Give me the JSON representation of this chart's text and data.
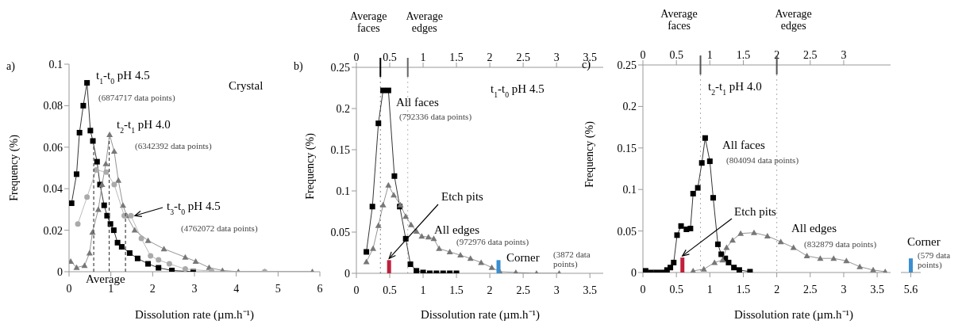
{
  "chart_data": [
    {
      "type": "line",
      "xlabel": "Dissolution rate (µm.h⁻¹)",
      "ylabel": "Frequency (%)",
      "xlim": [
        0,
        6
      ],
      "xticks": [
        0,
        1,
        2,
        3,
        4,
        5,
        6
      ],
      "ylim": [
        0,
        0.1
      ],
      "yticks": [
        0,
        0.02,
        0.04,
        0.06,
        0.08,
        0.1
      ],
      "annotations": [
        "a)",
        "(6874717 data points)",
        "(6342392 data points)",
        "(4762072 data points)",
        "Crystal",
        "Average",
        {
          "text": "t$_{3}$-t$_{0}$ pH 4.5",
          "x": 1.48,
          "y": 0.027
        }
      ],
      "ref_lines": [
        {
          "axis": "x",
          "value": 0.59,
          "color": "#444444",
          "line_style": "dashed"
        },
        {
          "axis": "x",
          "value": 0.96,
          "color": "#444444",
          "line_style": "dashed"
        },
        {
          "axis": "x",
          "value": 1.35,
          "color": "#444444",
          "line_style": "dashed"
        }
      ],
      "series": [
        {
          "name": "t$_{1}$-t$_{0}$ pH 4.5",
          "marker": "square",
          "color": "#000000",
          "x": [
            0.06,
            0.18,
            0.25,
            0.34,
            0.43,
            0.51,
            0.57,
            0.67,
            0.74,
            0.84,
            0.91,
            0.99,
            1.07,
            1.16,
            1.26,
            1.45,
            1.64,
            1.89,
            2.14,
            2.46,
            2.97
          ],
          "values": [
            0.033,
            0.047,
            0.067,
            0.08,
            0.091,
            0.068,
            0.063,
            0.053,
            0.042,
            0.032,
            0.027,
            0.023,
            0.02,
            0.014,
            0.012,
            0.009,
            0.0064,
            0.0038,
            0.0019,
            0.0006,
            0
          ]
        },
        {
          "name": "t$_{2}$-t$_{1}$ pH 4.0",
          "marker": "triangle",
          "color": "#777777",
          "x": [
            0.04,
            0.18,
            0.37,
            0.49,
            0.56,
            0.7,
            0.79,
            0.88,
            0.97,
            1.08,
            1.18,
            1.29,
            1.38,
            1.57,
            1.89,
            2.27,
            2.78,
            3.03,
            3.35,
            3.67,
            4.05,
            4.68,
            5.82
          ],
          "values": [
            0.005,
            0.002,
            0.003,
            0.009,
            0.019,
            0.03,
            0.042,
            0.052,
            0.066,
            0.058,
            0.044,
            0.032,
            0.027,
            0.02,
            0.015,
            0.011,
            0.007,
            0.005,
            0.002,
            0.0006,
            0,
            0,
            0
          ]
        },
        {
          "marker": "circle",
          "color": "#aaaaaa",
          "x": [
            0.21,
            0.43,
            0.65,
            0.89,
            1.08,
            1.32,
            1.48,
            1.73,
            1.95,
            2.14,
            2.4,
            2.78,
            3.41,
            4.68
          ],
          "values": [
            0.023,
            0.036,
            0.049,
            0.048,
            0.042,
            0.027,
            0.027,
            0.016,
            0.0076,
            0.0057,
            0.0038,
            0.0013,
            0.0003,
            0
          ]
        }
      ]
    },
    {
      "type": "line",
      "xlabel": "Dissolution rate (µm.h⁻¹)",
      "ylabel": "Frequency (%)",
      "xlim": [
        0,
        3.7
      ],
      "xticks": [
        0,
        0.5,
        1,
        1.5,
        2,
        2.5,
        3,
        3.5
      ],
      "x2lim": [
        0,
        3.7
      ],
      "x2ticks": [
        0,
        0.5,
        1,
        1.5,
        2,
        2.5,
        3,
        3.5
      ],
      "ylim": [
        0,
        0.25
      ],
      "yticks": [
        0,
        0.05,
        0.1,
        0.15,
        0.2,
        0.25
      ],
      "annotations": [
        "b)",
        "t$_{1}$-t$_{0}$ pH 4.5",
        "(792336 data points)",
        "(972976 data points)",
        "(3872 data points)"
      ],
      "ref_lines": [
        {
          "axis": "x2",
          "value": 0.36,
          "label": "Average faces",
          "color": "#000000"
        },
        {
          "axis": "x2",
          "value": 0.77,
          "label": "Average edges",
          "color": "#666666"
        }
      ],
      "series": [
        {
          "name": "All faces",
          "marker": "square",
          "color": "#000000",
          "x": [
            0.15,
            0.24,
            0.33,
            0.4,
            0.48,
            0.57,
            0.65,
            0.74,
            0.81,
            0.9,
            1,
            1.1,
            1.2,
            1.3,
            1.4,
            1.5
          ],
          "values": [
            0.026,
            0.081,
            0.182,
            0.222,
            0.222,
            0.118,
            0.081,
            0.042,
            0.011,
            0.003,
            0.001,
            0,
            0,
            0,
            0,
            0
          ]
        },
        {
          "name": "All edges",
          "marker": "triangle",
          "color": "#777777",
          "x": [
            0.15,
            0.25,
            0.33,
            0.4,
            0.48,
            0.56,
            0.66,
            0.74,
            0.82,
            0.9,
            0.98,
            1.08,
            1.16,
            1.24,
            1.4,
            1.56,
            1.71,
            1.87,
            2.03,
            2.15,
            2.39,
            2.7,
            3.04
          ],
          "values": [
            0.014,
            0.03,
            0.058,
            0.083,
            0.107,
            0.095,
            0.083,
            0.069,
            0.059,
            0.051,
            0.045,
            0.044,
            0.042,
            0.03,
            0.026,
            0.022,
            0.018,
            0.013,
            0.007,
            0.002,
            0.001,
            0,
            0
          ]
        },
        {
          "name": "Etch pits",
          "type": "bar",
          "color": "#c0203a",
          "x": [
            0.49
          ],
          "values": [
            0.016
          ]
        },
        {
          "name": "Corner",
          "type": "bar",
          "color": "#3a8fd0",
          "x": [
            2.13
          ],
          "values": [
            0.016
          ]
        }
      ]
    },
    {
      "type": "line",
      "xlabel": "Dissolution rate (µm.h⁻¹)",
      "ylabel": "Frequency (%)",
      "xlim": [
        0,
        3.7
      ],
      "xticks": [
        0,
        0.5,
        1,
        1.5,
        2,
        2.5,
        3,
        3.5
      ],
      "x2lim": [
        0,
        3.7
      ],
      "x2ticks": [
        0,
        0.5,
        1,
        1.5,
        2,
        2.5,
        3
      ],
      "ylim": [
        0,
        0.25
      ],
      "yticks": [
        0,
        0.05,
        0.1,
        0.15,
        0.2,
        0.25
      ],
      "annotations": [
        "c)",
        "t$_{2}$-t$_{1}$ pH 4.0",
        "(804094 data points)",
        "(832879 data points)"
      ],
      "ref_lines": [
        {
          "axis": "x2",
          "value": 0.86,
          "label": "Average faces",
          "color": "#555555"
        },
        {
          "axis": "x2",
          "value": 2.0,
          "label": "Average edges",
          "color": "#555555"
        }
      ],
      "series": [
        {
          "name": "All faces",
          "marker": "square",
          "color": "#000000",
          "x": [
            0.04,
            0.12,
            0.2,
            0.28,
            0.36,
            0.41,
            0.46,
            0.51,
            0.57,
            0.65,
            0.71,
            0.75,
            0.82,
            0.88,
            0.93,
            1,
            1.05,
            1.12,
            1.17,
            1.23,
            1.28,
            1.36,
            1.44,
            1.6
          ],
          "values": [
            0.002,
            0,
            0,
            0,
            0.003,
            0.006,
            0.012,
            0.045,
            0.056,
            0.052,
            0.053,
            0.095,
            0.102,
            0.132,
            0.162,
            0.134,
            0.09,
            0.034,
            0.022,
            0.017,
            0.012,
            0.006,
            0.003,
            0.001
          ]
        },
        {
          "name": "All edges",
          "marker": "triangle",
          "color": "#777777",
          "x": [
            0.75,
            0.91,
            1.07,
            1.19,
            1.25,
            1.34,
            1.46,
            1.66,
            1.86,
            2.06,
            2.25,
            2.45,
            2.65,
            2.85,
            3.04,
            3.24,
            3.44,
            3.62
          ],
          "values": [
            0.002,
            0.004,
            0.012,
            0.015,
            0.03,
            0.039,
            0.047,
            0.048,
            0.044,
            0.037,
            0.03,
            0.02,
            0.017,
            0.017,
            0.014,
            0.007,
            0.003,
            0.001
          ]
        },
        {
          "name": "Etch pits",
          "type": "bar",
          "color": "#c0203a",
          "x": [
            0.59
          ],
          "values": [
            0.018
          ]
        }
      ]
    },
    {
      "type": "bar",
      "categories": [
        "5.6"
      ],
      "ylim": [
        0,
        0.25
      ],
      "tick_labels": "x",
      "annotations": [
        "(579 data points)"
      ],
      "series": [
        {
          "name": "Corner",
          "color": "#3a8fd0",
          "values": [
            0.017
          ]
        }
      ]
    }
  ]
}
